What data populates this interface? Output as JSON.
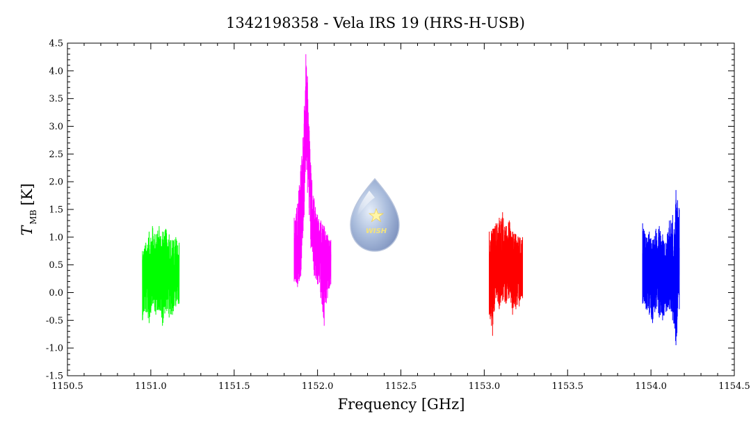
{
  "chart_data": {
    "type": "line",
    "title": "1342198358 - Vela IRS 19 (HRS-H-USB)",
    "xlabel": "Frequency [GHz]",
    "ylabel": {
      "main": "T",
      "subscript": "MB",
      "unit": "[K]"
    },
    "xlim": [
      1150.5,
      1154.5
    ],
    "ylim": [
      -1.5,
      4.5
    ],
    "xticks": [
      1150.5,
      1151.0,
      1151.5,
      1152.0,
      1152.5,
      1153.0,
      1153.5,
      1154.0,
      1154.5
    ],
    "xtick_labels": [
      "1150.5",
      "1151.0",
      "1151.5",
      "1152.0",
      "1152.5",
      "1153.0",
      "1153.5",
      "1154.0",
      "1154.5"
    ],
    "yticks": [
      -1.5,
      -1.0,
      -0.5,
      0.0,
      0.5,
      1.0,
      1.5,
      2.0,
      2.5,
      3.0,
      3.5,
      4.0,
      4.5
    ],
    "ytick_labels": [
      "-1.5",
      "-1.0",
      "-0.5",
      "0.0",
      "0.5",
      "1.0",
      "1.5",
      "2.0",
      "2.5",
      "3.0",
      "3.5",
      "4.0",
      "4.5"
    ],
    "grid": false,
    "series": [
      {
        "color": "#00ff00",
        "x": [
          1150.95,
          1150.97,
          1150.99,
          1151.01,
          1151.03,
          1151.05,
          1151.07,
          1151.09,
          1151.11,
          1151.13,
          1151.15,
          1151.17
        ],
        "y_mid": [
          0.25,
          0.3,
          0.28,
          0.32,
          0.35,
          0.3,
          0.28,
          0.3,
          0.27,
          0.25,
          0.3,
          0.28
        ],
        "y_max": [
          0.75,
          0.9,
          1.1,
          1.2,
          1.05,
          1.2,
          1.1,
          1.15,
          1.05,
          0.95,
          1.0,
          0.9
        ],
        "y_min": [
          -0.5,
          -0.35,
          -0.55,
          -0.2,
          -0.4,
          -0.3,
          -0.6,
          -0.3,
          -0.45,
          -0.4,
          -0.25,
          -0.2
        ]
      },
      {
        "color": "#ff00ff",
        "x": [
          1151.86,
          1151.88,
          1151.9,
          1151.92,
          1151.93,
          1151.94,
          1151.95,
          1151.96,
          1151.98,
          1152.0,
          1152.02,
          1152.04,
          1152.06,
          1152.08
        ],
        "y_mid": [
          0.55,
          0.7,
          1.2,
          2.4,
          3.4,
          3.0,
          2.3,
          1.6,
          1.1,
          0.85,
          0.75,
          0.7,
          0.65,
          0.65
        ],
        "y_max": [
          1.35,
          1.6,
          2.3,
          3.3,
          4.3,
          3.9,
          3.0,
          2.3,
          1.7,
          1.4,
          1.3,
          1.2,
          1.05,
          0.95
        ],
        "y_min": [
          0.2,
          0.1,
          0.3,
          1.4,
          2.4,
          1.8,
          1.4,
          0.8,
          0.3,
          0.15,
          -0.1,
          -0.6,
          -0.1,
          0.15
        ]
      },
      {
        "color": "#ff0000",
        "x": [
          1153.03,
          1153.05,
          1153.07,
          1153.09,
          1153.11,
          1153.13,
          1153.15,
          1153.17,
          1153.19,
          1153.21,
          1153.23
        ],
        "y_mid": [
          0.4,
          0.45,
          0.5,
          0.48,
          0.52,
          0.5,
          0.47,
          0.45,
          0.5,
          0.45,
          0.48
        ],
        "y_max": [
          1.1,
          1.15,
          1.25,
          1.35,
          1.45,
          1.2,
          1.3,
          1.1,
          1.05,
          1.0,
          1.0
        ],
        "y_min": [
          -0.4,
          -0.78,
          -0.1,
          -0.3,
          -0.15,
          -0.2,
          -0.1,
          -0.4,
          -0.3,
          -0.25,
          -0.1
        ]
      },
      {
        "color": "#0000ff",
        "x": [
          1153.95,
          1153.97,
          1153.99,
          1154.01,
          1154.03,
          1154.05,
          1154.07,
          1154.09,
          1154.11,
          1154.13,
          1154.15,
          1154.17
        ],
        "y_mid": [
          0.3,
          0.35,
          0.3,
          0.32,
          0.3,
          0.28,
          0.3,
          0.35,
          0.3,
          0.33,
          0.4,
          0.35
        ],
        "y_max": [
          1.25,
          1.0,
          1.1,
          0.95,
          1.15,
          1.2,
          1.05,
          0.9,
          1.3,
          1.4,
          1.85,
          1.5
        ],
        "y_min": [
          -0.2,
          -0.3,
          -0.4,
          -0.55,
          -0.3,
          -0.45,
          -0.5,
          -0.35,
          -0.3,
          -0.5,
          -0.95,
          -0.3
        ]
      }
    ]
  },
  "logo": {
    "text": "WISH"
  }
}
